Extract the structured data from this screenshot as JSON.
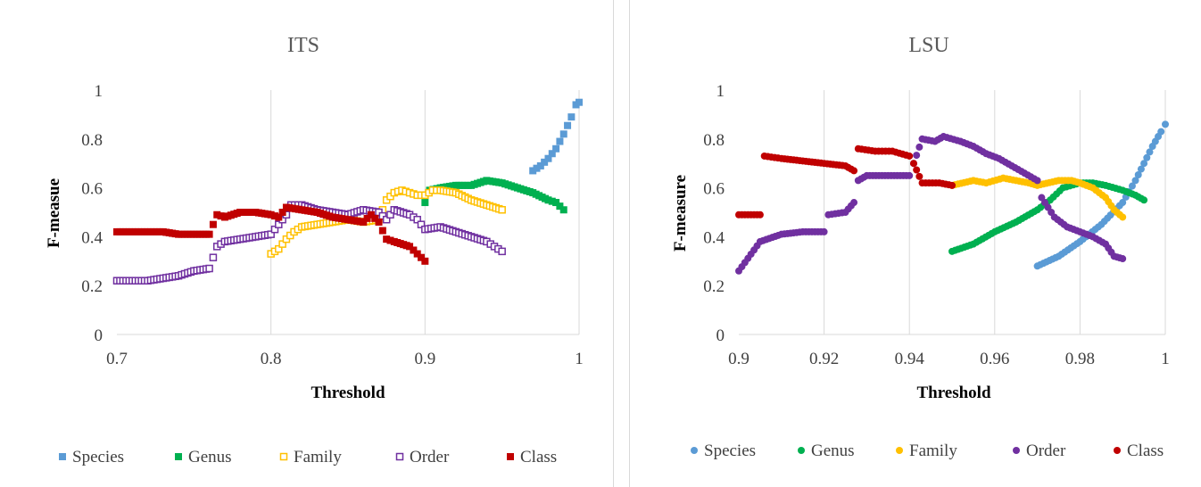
{
  "charts": [
    {
      "title": "ITS",
      "xlabel": "Threshold",
      "ylabel": "F-measue",
      "x_ticks": [
        "0.7",
        "0.8",
        "0.9",
        "1"
      ],
      "y_ticks": [
        "0",
        "0.2",
        "0.4",
        "0.6",
        "0.8",
        "1"
      ],
      "legend": [
        "Species",
        "Genus",
        "Family",
        "Order",
        "Class"
      ]
    },
    {
      "title": "LSU",
      "xlabel": "Threshold",
      "ylabel": "F-measure",
      "x_ticks": [
        "0.9",
        "0.92",
        "0.94",
        "0.96",
        "0.98",
        "1"
      ],
      "y_ticks": [
        "0",
        "0.2",
        "0.4",
        "0.6",
        "0.8",
        "1"
      ],
      "legend": [
        "Species",
        "Genus",
        "Family",
        "Order",
        "Class"
      ]
    }
  ],
  "chart_data": [
    {
      "type": "scatter",
      "title": "ITS",
      "xlabel": "Threshold",
      "ylabel": "F-measue",
      "xlim": [
        0.7,
        1.0
      ],
      "ylim": [
        0,
        1
      ],
      "grid": "vertical",
      "legend_position": "bottom",
      "marker": "square",
      "series": [
        {
          "name": "Species",
          "color": "#5b9bd5",
          "filled": true,
          "points": [
            [
              0.97,
              0.67
            ],
            [
              0.975,
              0.69
            ],
            [
              0.98,
              0.72
            ],
            [
              0.985,
              0.76
            ],
            [
              0.99,
              0.82
            ],
            [
              0.995,
              0.89
            ],
            [
              0.998,
              0.94
            ],
            [
              1.0,
              0.95
            ]
          ]
        },
        {
          "name": "Genus",
          "color": "#00b050",
          "filled": true,
          "points": [
            [
              0.9,
              0.54
            ],
            [
              0.903,
              0.59
            ],
            [
              0.91,
              0.6
            ],
            [
              0.92,
              0.61
            ],
            [
              0.93,
              0.61
            ],
            [
              0.94,
              0.63
            ],
            [
              0.95,
              0.62
            ],
            [
              0.96,
              0.6
            ],
            [
              0.97,
              0.58
            ],
            [
              0.98,
              0.55
            ],
            [
              0.985,
              0.54
            ],
            [
              0.99,
              0.51
            ]
          ]
        },
        {
          "name": "Family",
          "color": "#ffc000",
          "filled": false,
          "points": [
            [
              0.8,
              0.33
            ],
            [
              0.805,
              0.35
            ],
            [
              0.81,
              0.39
            ],
            [
              0.815,
              0.42
            ],
            [
              0.82,
              0.44
            ],
            [
              0.83,
              0.45
            ],
            [
              0.84,
              0.46
            ],
            [
              0.85,
              0.47
            ],
            [
              0.86,
              0.46
            ],
            [
              0.87,
              0.47
            ],
            [
              0.875,
              0.55
            ],
            [
              0.88,
              0.58
            ],
            [
              0.885,
              0.59
            ],
            [
              0.89,
              0.58
            ],
            [
              0.895,
              0.57
            ],
            [
              0.9,
              0.57
            ],
            [
              0.905,
              0.59
            ],
            [
              0.91,
              0.59
            ],
            [
              0.92,
              0.58
            ],
            [
              0.93,
              0.55
            ],
            [
              0.94,
              0.53
            ],
            [
              0.95,
              0.51
            ]
          ]
        },
        {
          "name": "Order",
          "color": "#7030a0",
          "filled": false,
          "points": [
            [
              0.7,
              0.22
            ],
            [
              0.72,
              0.22
            ],
            [
              0.73,
              0.23
            ],
            [
              0.74,
              0.24
            ],
            [
              0.75,
              0.26
            ],
            [
              0.76,
              0.27
            ],
            [
              0.765,
              0.36
            ],
            [
              0.77,
              0.38
            ],
            [
              0.78,
              0.39
            ],
            [
              0.79,
              0.4
            ],
            [
              0.8,
              0.41
            ],
            [
              0.805,
              0.45
            ],
            [
              0.81,
              0.49
            ],
            [
              0.813,
              0.53
            ],
            [
              0.82,
              0.53
            ],
            [
              0.83,
              0.51
            ],
            [
              0.84,
              0.5
            ],
            [
              0.85,
              0.49
            ],
            [
              0.86,
              0.51
            ],
            [
              0.87,
              0.5
            ],
            [
              0.875,
              0.47
            ],
            [
              0.88,
              0.51
            ],
            [
              0.89,
              0.49
            ],
            [
              0.895,
              0.47
            ],
            [
              0.9,
              0.43
            ],
            [
              0.91,
              0.44
            ],
            [
              0.92,
              0.42
            ],
            [
              0.93,
              0.4
            ],
            [
              0.94,
              0.38
            ],
            [
              0.945,
              0.36
            ],
            [
              0.95,
              0.34
            ]
          ]
        },
        {
          "name": "Class",
          "color": "#c00000",
          "filled": true,
          "points": [
            [
              0.7,
              0.42
            ],
            [
              0.72,
              0.42
            ],
            [
              0.73,
              0.42
            ],
            [
              0.74,
              0.41
            ],
            [
              0.75,
              0.41
            ],
            [
              0.76,
              0.41
            ],
            [
              0.765,
              0.49
            ],
            [
              0.77,
              0.48
            ],
            [
              0.78,
              0.5
            ],
            [
              0.79,
              0.5
            ],
            [
              0.8,
              0.49
            ],
            [
              0.805,
              0.48
            ],
            [
              0.81,
              0.52
            ],
            [
              0.82,
              0.51
            ],
            [
              0.83,
              0.5
            ],
            [
              0.84,
              0.48
            ],
            [
              0.85,
              0.47
            ],
            [
              0.86,
              0.46
            ],
            [
              0.865,
              0.49
            ],
            [
              0.87,
              0.46
            ],
            [
              0.875,
              0.39
            ],
            [
              0.88,
              0.38
            ],
            [
              0.89,
              0.36
            ],
            [
              0.895,
              0.33
            ],
            [
              0.9,
              0.3
            ]
          ]
        }
      ]
    },
    {
      "type": "scatter",
      "title": "LSU",
      "xlabel": "Threshold",
      "ylabel": "F-measure",
      "xlim": [
        0.9,
        1.0
      ],
      "ylim": [
        0,
        1
      ],
      "grid": "vertical",
      "legend_position": "bottom",
      "marker": "circle",
      "series": [
        {
          "name": "Species",
          "color": "#5b9bd5",
          "filled": true,
          "points": [
            [
              0.97,
              0.28
            ],
            [
              0.975,
              0.32
            ],
            [
              0.98,
              0.38
            ],
            [
              0.985,
              0.45
            ],
            [
              0.99,
              0.54
            ],
            [
              0.993,
              0.63
            ],
            [
              0.995,
              0.7
            ],
            [
              0.997,
              0.77
            ],
            [
              0.999,
              0.83
            ],
            [
              1.0,
              0.86
            ]
          ]
        },
        {
          "name": "Genus",
          "color": "#00b050",
          "filled": true,
          "points": [
            [
              0.95,
              0.34
            ],
            [
              0.955,
              0.37
            ],
            [
              0.96,
              0.42
            ],
            [
              0.965,
              0.46
            ],
            [
              0.97,
              0.51
            ],
            [
              0.973,
              0.55
            ],
            [
              0.976,
              0.6
            ],
            [
              0.98,
              0.62
            ],
            [
              0.983,
              0.62
            ],
            [
              0.986,
              0.61
            ],
            [
              0.99,
              0.59
            ],
            [
              0.993,
              0.57
            ],
            [
              0.995,
              0.55
            ]
          ]
        },
        {
          "name": "Family",
          "color": "#ffc000",
          "filled": true,
          "points": [
            [
              0.95,
              0.61
            ],
            [
              0.955,
              0.63
            ],
            [
              0.958,
              0.62
            ],
            [
              0.962,
              0.64
            ],
            [
              0.965,
              0.63
            ],
            [
              0.968,
              0.62
            ],
            [
              0.97,
              0.61
            ],
            [
              0.975,
              0.63
            ],
            [
              0.978,
              0.63
            ],
            [
              0.98,
              0.62
            ],
            [
              0.983,
              0.6
            ],
            [
              0.986,
              0.56
            ],
            [
              0.988,
              0.51
            ],
            [
              0.99,
              0.48
            ]
          ]
        },
        {
          "name": "Order",
          "color": "#7030a0",
          "filled": true,
          "points": [
            [
              0.9,
              0.26
            ],
            [
              0.905,
              0.38
            ],
            [
              0.91,
              0.41
            ],
            [
              0.915,
              0.42
            ],
            [
              0.92,
              0.42
            ],
            [
              0.921,
              0.49
            ],
            [
              0.925,
              0.5
            ],
            [
              0.927,
              0.54
            ],
            [
              0.928,
              0.63
            ],
            [
              0.93,
              0.65
            ],
            [
              0.935,
              0.65
            ],
            [
              0.94,
              0.65
            ],
            [
              0.941,
              0.7
            ],
            [
              0.943,
              0.8
            ],
            [
              0.946,
              0.79
            ],
            [
              0.948,
              0.81
            ],
            [
              0.952,
              0.79
            ],
            [
              0.955,
              0.77
            ],
            [
              0.958,
              0.74
            ],
            [
              0.961,
              0.72
            ],
            [
              0.964,
              0.69
            ],
            [
              0.967,
              0.66
            ],
            [
              0.97,
              0.63
            ],
            [
              0.971,
              0.56
            ],
            [
              0.974,
              0.48
            ],
            [
              0.977,
              0.44
            ],
            [
              0.98,
              0.42
            ],
            [
              0.983,
              0.4
            ],
            [
              0.986,
              0.37
            ],
            [
              0.988,
              0.32
            ],
            [
              0.99,
              0.31
            ]
          ]
        },
        {
          "name": "Class",
          "color": "#c00000",
          "filled": true,
          "points": [
            [
              0.9,
              0.49
            ],
            [
              0.905,
              0.49
            ],
            [
              0.906,
              0.73
            ],
            [
              0.91,
              0.72
            ],
            [
              0.915,
              0.71
            ],
            [
              0.92,
              0.7
            ],
            [
              0.925,
              0.69
            ],
            [
              0.927,
              0.67
            ],
            [
              0.928,
              0.76
            ],
            [
              0.932,
              0.75
            ],
            [
              0.936,
              0.75
            ],
            [
              0.94,
              0.73
            ],
            [
              0.941,
              0.7
            ],
            [
              0.943,
              0.62
            ],
            [
              0.947,
              0.62
            ],
            [
              0.95,
              0.61
            ]
          ]
        }
      ]
    }
  ]
}
